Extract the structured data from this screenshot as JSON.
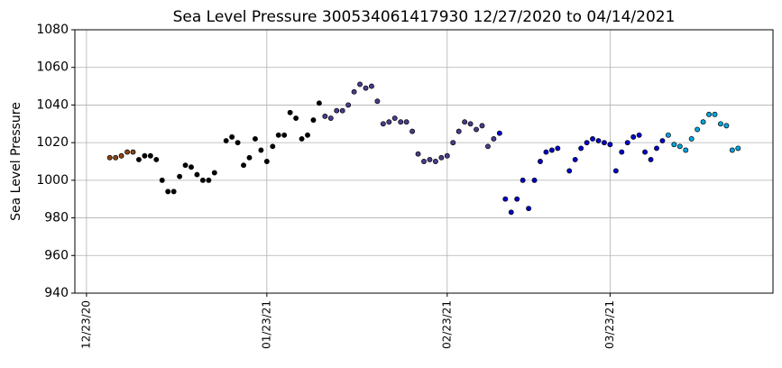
{
  "chart_data": {
    "type": "scatter",
    "title": "Sea Level Pressure 300534061417930  12/27/2020 to 04/14/2021",
    "y_label": "Sea Level Pressure",
    "xlim": [
      "12/21/20",
      "04/20/21"
    ],
    "xticks": [
      "12/23/20",
      "01/23/21",
      "02/23/21",
      "03/23/21"
    ],
    "ylim": [
      940,
      1080
    ],
    "yticks": [
      940,
      960,
      980,
      1000,
      1020,
      1040,
      1060,
      1080
    ],
    "grid": true,
    "series": [
      {
        "color": "#8b4513",
        "x": [
          "12/27/20",
          "12/28/20",
          "12/29/20",
          "12/30/20",
          "12/31/20"
        ],
        "values": [
          1012,
          1012,
          1013,
          1015,
          1015
        ]
      },
      {
        "color": "#000000",
        "x": [
          "01/01/21",
          "01/02/21",
          "01/03/21",
          "01/04/21",
          "01/05/21",
          "01/06/21",
          "01/07/21",
          "01/08/21",
          "01/09/21",
          "01/10/21",
          "01/11/21",
          "01/12/21",
          "01/13/21",
          "01/14/21",
          "01/16/21",
          "01/17/21",
          "01/18/21",
          "01/19/21",
          "01/20/21",
          "01/21/21",
          "01/22/21",
          "01/23/21",
          "01/24/21",
          "01/25/21",
          "01/26/21",
          "01/27/21",
          "01/28/21",
          "01/29/21",
          "01/30/21",
          "01/31/21",
          "02/01/21"
        ],
        "values": [
          1011,
          1013,
          1013,
          1011,
          1000,
          994,
          994,
          1002,
          1008,
          1007,
          1003,
          1000,
          1000,
          1004,
          1021,
          1023,
          1020,
          1008,
          1012,
          1022,
          1016,
          1010,
          1018,
          1024,
          1024,
          1036,
          1033,
          1022,
          1024,
          1032,
          1041
        ]
      },
      {
        "color": "#483d8b",
        "x": [
          "02/02/21",
          "02/03/21",
          "02/04/21",
          "02/05/21",
          "02/06/21",
          "02/07/21",
          "02/08/21",
          "02/09/21",
          "02/10/21",
          "02/11/21",
          "02/12/21",
          "02/13/21",
          "02/14/21",
          "02/15/21",
          "02/16/21",
          "02/17/21",
          "02/18/21",
          "02/19/21",
          "02/20/21",
          "02/21/21",
          "02/22/21",
          "02/23/21",
          "02/24/21",
          "02/25/21",
          "02/26/21",
          "02/27/21",
          "02/28/21",
          "03/01/21",
          "03/02/21",
          "03/03/21"
        ],
        "values": [
          1034,
          1033,
          1037,
          1037,
          1040,
          1047,
          1051,
          1049,
          1050,
          1042,
          1030,
          1031,
          1033,
          1031,
          1031,
          1026,
          1014,
          1010,
          1011,
          1010,
          1012,
          1013,
          1020,
          1026,
          1031,
          1030,
          1027,
          1029,
          1018,
          1022
        ]
      },
      {
        "color": "#0000cd",
        "x": [
          "03/04/21",
          "03/05/21",
          "03/06/21",
          "03/07/21",
          "03/08/21",
          "03/09/21",
          "03/10/21",
          "03/11/21",
          "03/12/21",
          "03/13/21",
          "03/14/21",
          "03/16/21",
          "03/17/21",
          "03/18/21",
          "03/19/21",
          "03/20/21",
          "03/21/21",
          "03/22/21",
          "03/23/21",
          "03/24/21",
          "03/25/21",
          "03/26/21",
          "03/27/21",
          "03/28/21",
          "03/29/21",
          "03/30/21",
          "03/31/21",
          "04/01/21"
        ],
        "values": [
          1025,
          990,
          983,
          990,
          1000,
          985,
          1000,
          1010,
          1015,
          1016,
          1017,
          1005,
          1011,
          1017,
          1020,
          1022,
          1021,
          1020,
          1019,
          1005,
          1015,
          1020,
          1023,
          1024,
          1015,
          1011,
          1017,
          1021
        ]
      },
      {
        "color": "#00a5e0",
        "x": [
          "04/02/21",
          "04/03/21",
          "04/04/21",
          "04/05/21",
          "04/06/21",
          "04/07/21",
          "04/08/21",
          "04/09/21",
          "04/10/21",
          "04/11/21",
          "04/12/21",
          "04/13/21",
          "04/14/21"
        ],
        "values": [
          1024,
          1019,
          1018,
          1016,
          1022,
          1027,
          1031,
          1035,
          1035,
          1030,
          1029,
          1016,
          1017
        ]
      }
    ]
  }
}
